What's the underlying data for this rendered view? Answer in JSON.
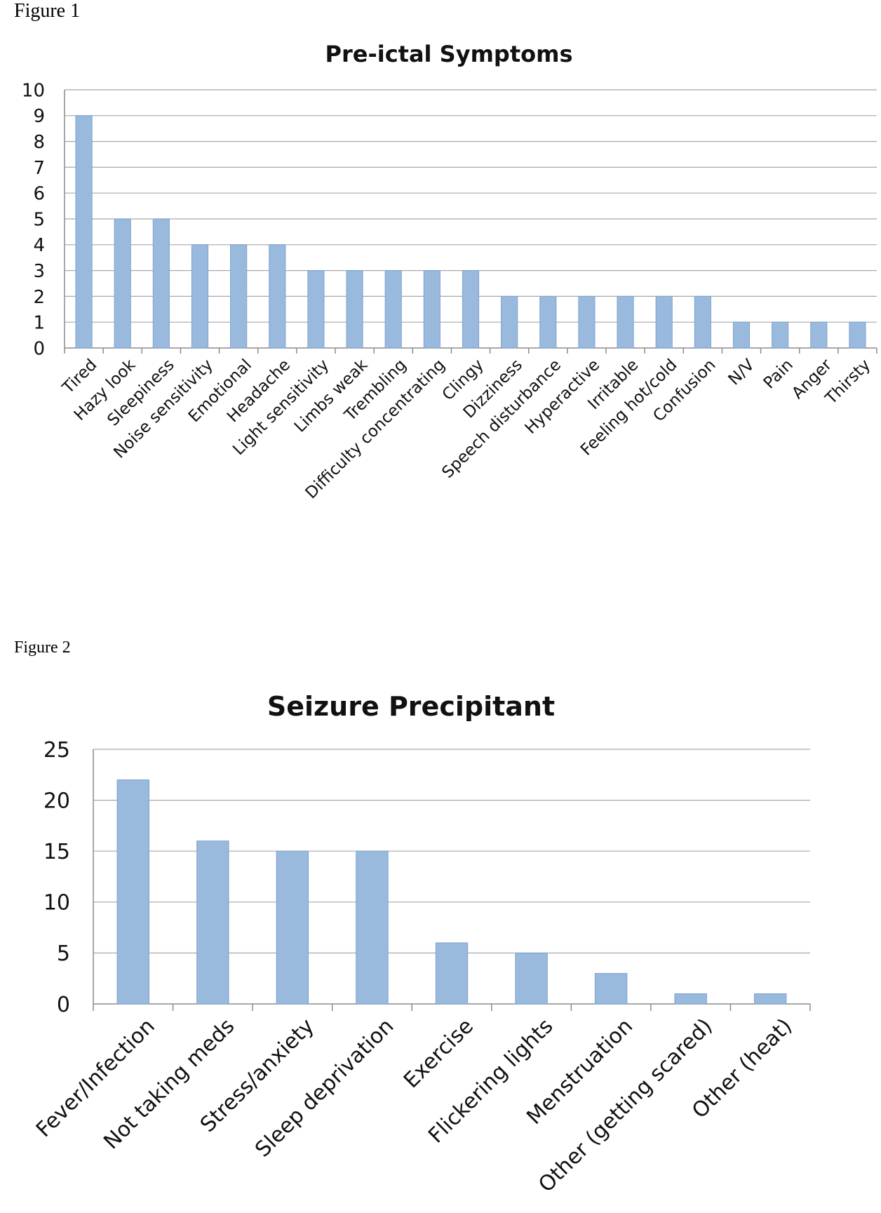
{
  "figures": [
    {
      "label": "Figure 1"
    },
    {
      "label": "Figure 2"
    }
  ],
  "chart_data": [
    {
      "type": "bar",
      "title": "Pre-ictal Symptoms",
      "xlabel": "",
      "ylabel": "",
      "ylim": [
        0,
        10
      ],
      "yticks": [
        0,
        1,
        2,
        3,
        4,
        5,
        6,
        7,
        8,
        9,
        10
      ],
      "grid": true,
      "bar_color": "#99b9dd",
      "categories": [
        "Tired",
        "Hazy look",
        "Sleepiness",
        "Noise sensitivity",
        "Emotional",
        "Headache",
        "Light sensitivity",
        "Limbs weak",
        "Trembling",
        "Difficulty concentrating",
        "Clingy",
        "Dizziness",
        "Speech disturbance",
        "Hyperactive",
        "Irritable",
        "Feeling hot/cold",
        "Confusion",
        "N/V",
        "Pain",
        "Anger",
        "Thirsty"
      ],
      "values": [
        9,
        5,
        5,
        4,
        4,
        4,
        3,
        3,
        3,
        3,
        3,
        2,
        2,
        2,
        2,
        2,
        2,
        1,
        1,
        1,
        1
      ]
    },
    {
      "type": "bar",
      "title": "Seizure Precipitant",
      "xlabel": "",
      "ylabel": "",
      "ylim": [
        0,
        25
      ],
      "yticks": [
        0,
        5,
        10,
        15,
        20,
        25
      ],
      "grid": true,
      "bar_color": "#99b9dd",
      "categories": [
        "Fever/Infection",
        "Not taking meds",
        "Stress/anxiety",
        "Sleep deprivation",
        "Exercise",
        "Flickering lights",
        "Menstruation",
        "Other (getting scared)",
        "Other (heat)"
      ],
      "values": [
        22,
        16,
        15,
        15,
        6,
        5,
        3,
        1,
        1
      ]
    }
  ]
}
